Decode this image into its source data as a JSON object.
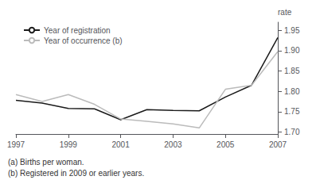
{
  "chart_data": {
    "type": "line",
    "ylabel": "rate",
    "annotations": [
      "(a) Births per woman.",
      "(b) Registered in 2009 or earlier years."
    ],
    "x": [
      1997,
      1998,
      1999,
      2000,
      2001,
      2002,
      2003,
      2004,
      2005,
      2006,
      2007
    ],
    "series": [
      {
        "name": "Year of registration",
        "color": "#1a1a1a",
        "values": [
          1.778,
          1.771,
          1.758,
          1.757,
          1.73,
          1.755,
          1.753,
          1.752,
          1.786,
          1.815,
          1.932
        ]
      },
      {
        "name": "Year of occurrence (b)",
        "color": "#bbbbbb",
        "values": [
          1.792,
          1.775,
          1.792,
          1.768,
          1.732,
          1.726,
          1.72,
          1.71,
          1.805,
          1.815,
          1.898
        ]
      }
    ],
    "xlim": [
      1997,
      2007
    ],
    "xticks": [
      1997,
      1999,
      2001,
      2003,
      2005,
      2007
    ],
    "ylim": [
      1.695,
      1.97
    ],
    "yticks": [
      {
        "value": 1.7,
        "label": "1.70"
      },
      1.75,
      {
        "value": 1.8,
        "label": "1.80"
      },
      1.85,
      {
        "value": 1.9,
        "label": "1.90"
      },
      1.95
    ],
    "grid": false,
    "legend": "upper left"
  }
}
